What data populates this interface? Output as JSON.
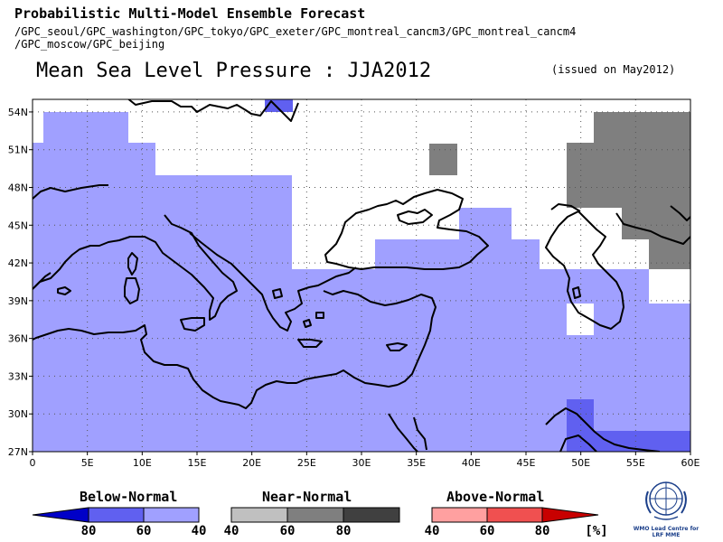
{
  "header": {
    "title": "Probabilistic Multi-Model Ensemble Forecast",
    "models_line1": "/GPC_seoul/GPC_washington/GPC_tokyo/GPC_exeter/GPC_montreal_cancm3/GPC_montreal_cancm4",
    "models_line2": "/GPC_moscow/GPC_beijing",
    "main_title": "Mean Sea Level Pressure : JJA2012",
    "issued": "(issued on May2012)"
  },
  "map": {
    "lon_range": [
      0,
      60
    ],
    "lat_range": [
      27,
      55
    ],
    "lon_ticks": [
      "0",
      "5E",
      "10E",
      "15E",
      "20E",
      "25E",
      "30E",
      "35E",
      "40E",
      "45E",
      "50E",
      "55E",
      "60E"
    ],
    "lat_ticks": [
      "27N",
      "30N",
      "33N",
      "36N",
      "39N",
      "42N",
      "45N",
      "48N",
      "51N",
      "54N"
    ],
    "grid": "dotted",
    "colors": {
      "below_40_60": "#a0a0ff",
      "below_60_80": "#6060f0",
      "below_80": "#0000c8",
      "near_40_60": "#c0c0c0",
      "near_60_80": "#7f7f7f",
      "near_80": "#404040",
      "above_40_60": "#ffa0a0",
      "above_60_80": "#f05050",
      "above_80": "#c80000",
      "coast": "#000000"
    }
  },
  "legend": {
    "below_title": "Below-Normal",
    "near_title": "Near-Normal",
    "above_title": "Above-Normal",
    "below_ticks": [
      "80",
      "60",
      "40"
    ],
    "near_ticks": [
      "40",
      "60",
      "80"
    ],
    "above_ticks": [
      "40",
      "60",
      "80"
    ],
    "unit": "[%]"
  },
  "logo": {
    "text_line1": "WMO Lead Centre for",
    "text_line2": "LRF MME"
  }
}
